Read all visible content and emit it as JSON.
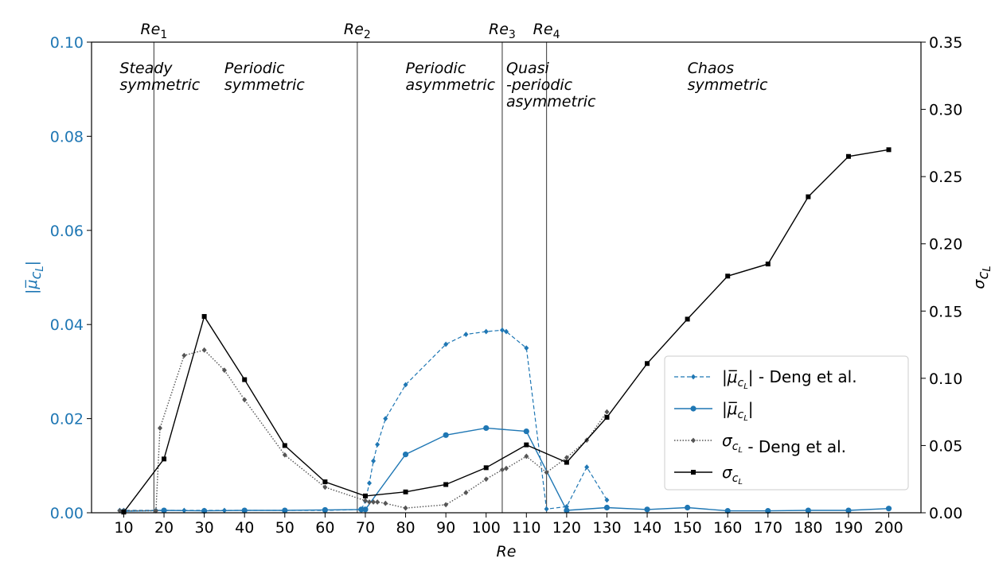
{
  "chart_data": {
    "type": "line",
    "xlabel": "Re",
    "ylabel_left": "|μ̅_{c_L}|",
    "ylabel_right": "σ_{c_L}",
    "xlim": [
      2,
      208
    ],
    "ylim_left": [
      0,
      0.1
    ],
    "ylim_right": [
      0,
      0.35
    ],
    "x_ticks": [
      10,
      20,
      30,
      40,
      50,
      60,
      70,
      80,
      90,
      100,
      110,
      120,
      130,
      140,
      150,
      160,
      170,
      180,
      190,
      200
    ],
    "y_left_ticks": [
      0.0,
      0.02,
      0.04,
      0.06,
      0.08,
      0.1
    ],
    "y_left_tick_labels": [
      "0.00",
      "0.02",
      "0.04",
      "0.06",
      "0.08",
      "0.10"
    ],
    "y_right_ticks": [
      0.0,
      0.05,
      0.1,
      0.15,
      0.2,
      0.25,
      0.3,
      0.35
    ],
    "y_right_tick_labels": [
      "0.00",
      "0.05",
      "0.10",
      "0.15",
      "0.20",
      "0.25",
      "0.30",
      "0.35"
    ],
    "grid": false,
    "legend_position": "center-right",
    "colors": {
      "blue": "#1f77b4",
      "black": "#000000",
      "gray": "#555555",
      "vline": "#555555"
    },
    "critical_re": [
      {
        "label": "Re",
        "sub": "1",
        "x": 17.5
      },
      {
        "label": "Re",
        "sub": "2",
        "x": 68
      },
      {
        "label": "Re",
        "sub": "3",
        "x": 104
      },
      {
        "label": "Re",
        "sub": "4",
        "x": 115
      }
    ],
    "regimes": [
      {
        "x": 9,
        "lines": [
          "Steady",
          "symmetric"
        ]
      },
      {
        "x": 35,
        "lines": [
          "Periodic",
          "symmetric"
        ]
      },
      {
        "x": 80,
        "lines": [
          "Periodic",
          "asymmetric"
        ]
      },
      {
        "x": 105,
        "lines": [
          "Quasi",
          "-periodic",
          "asymmetric"
        ]
      },
      {
        "x": 150,
        "lines": [
          "Chaos",
          "symmetric"
        ]
      }
    ],
    "series": [
      {
        "name": "|μ̅_{c_L}| - Deng et al.",
        "axis": "left",
        "style": "dashed-blue-diamond",
        "x": [
          9,
          10,
          18,
          20,
          25,
          30,
          35,
          40,
          50,
          60,
          69,
          70,
          71,
          72,
          73,
          75,
          80,
          90,
          95,
          100,
          104,
          105,
          110,
          115,
          120,
          125,
          130
        ],
        "y": [
          0.0005,
          0.0005,
          0.0005,
          0.0005,
          0.0005,
          0.0005,
          0.0005,
          0.0005,
          0.0005,
          0.0005,
          0.0007,
          0.0025,
          0.0063,
          0.011,
          0.0145,
          0.02,
          0.0272,
          0.0358,
          0.0379,
          0.0385,
          0.0388,
          0.0385,
          0.035,
          0.0008,
          0.0013,
          0.0097,
          0.0027
        ]
      },
      {
        "name": "|μ̅_{c_L}|",
        "axis": "left",
        "style": "solid-blue-circle",
        "x": [
          10,
          20,
          30,
          40,
          50,
          60,
          69,
          70,
          80,
          90,
          100,
          110,
          120,
          130,
          140,
          150,
          160,
          170,
          180,
          190,
          200
        ],
        "y": [
          0.0003,
          0.0005,
          0.0004,
          0.0005,
          0.0005,
          0.0006,
          0.0007,
          0.0007,
          0.0124,
          0.0165,
          0.018,
          0.0173,
          0.0005,
          0.0011,
          0.0007,
          0.0011,
          0.0004,
          0.0004,
          0.0005,
          0.0005,
          0.0009
        ]
      },
      {
        "name": "σ_{c_L} - Deng et al.",
        "axis": "right",
        "style": "dotted-gray-diamond",
        "x": [
          9,
          10,
          18,
          19,
          25,
          30,
          35,
          40,
          50,
          60,
          70,
          71,
          72,
          73,
          75,
          80,
          90,
          95,
          100,
          104,
          105,
          110,
          115,
          120,
          125,
          130
        ],
        "y": [
          0.0015,
          0.0015,
          0.0015,
          0.063,
          0.117,
          0.121,
          0.106,
          0.084,
          0.043,
          0.019,
          0.009,
          0.008,
          0.008,
          0.008,
          0.007,
          0.0035,
          0.006,
          0.015,
          0.025,
          0.032,
          0.033,
          0.042,
          0.03,
          0.041,
          0.054,
          0.075
        ]
      },
      {
        "name": "σ_{c_L}",
        "axis": "right",
        "style": "solid-black-square",
        "x": [
          10,
          20,
          30,
          40,
          50,
          60,
          70,
          80,
          90,
          100,
          110,
          120,
          130,
          140,
          150,
          160,
          170,
          180,
          190,
          200
        ],
        "y": [
          0.0005,
          0.04,
          0.146,
          0.099,
          0.05,
          0.023,
          0.0125,
          0.0155,
          0.021,
          0.0335,
          0.0505,
          0.0375,
          0.071,
          0.111,
          0.144,
          0.176,
          0.185,
          0.235,
          0.265,
          0.27
        ]
      }
    ],
    "legend": [
      {
        "text": "|μ̅_{c_L}| - Deng et al.",
        "style": "dashed-blue-diamond"
      },
      {
        "text": "|μ̅_{c_L}|",
        "style": "solid-blue-circle"
      },
      {
        "text": "σ_{c_L} - Deng et al.",
        "style": "dotted-gray-diamond"
      },
      {
        "text": "σ_{c_L}",
        "style": "solid-black-square"
      }
    ]
  }
}
